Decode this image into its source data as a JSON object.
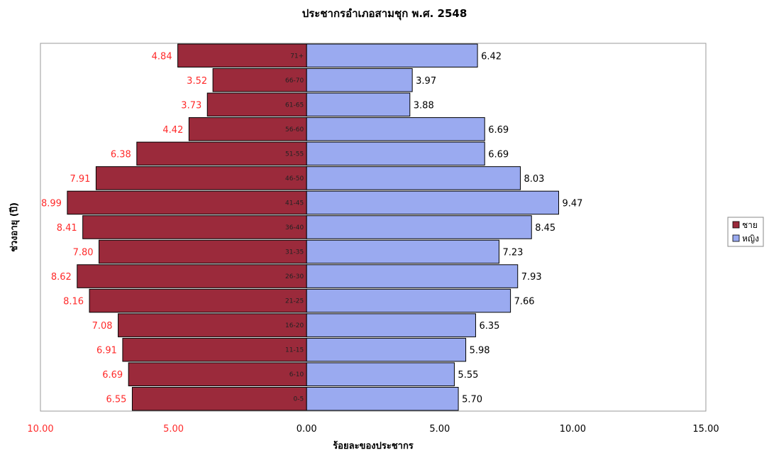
{
  "chart_data": {
    "type": "bar",
    "orientation": "horizontal-population-pyramid",
    "title": "ประชากรอำเภอสามชุก พ.ศ. 2548",
    "xlabel": "ร้อยละของประชากร",
    "ylabel": "ช่วงอายุ (ปี)",
    "xlim": [
      -10,
      15
    ],
    "x_ticks": [
      {
        "value": -10,
        "label": "10.00"
      },
      {
        "value": -5,
        "label": "5.00"
      },
      {
        "value": 0,
        "label": "0.00"
      },
      {
        "value": 5,
        "label": "5.00"
      },
      {
        "value": 10,
        "label": "10.00"
      },
      {
        "value": 15,
        "label": "15.00"
      }
    ],
    "categories": [
      "71+",
      "66-70",
      "61-65",
      "56-60",
      "51-55",
      "46-50",
      "41-45",
      "36-40",
      "31-35",
      "26-30",
      "21-25",
      "16-20",
      "11-15",
      "6-10",
      "0-5"
    ],
    "series": [
      {
        "name": "ชาย",
        "side": "left",
        "color": "#9b2a3b",
        "label_color": "#ff2a2a",
        "values": [
          4.84,
          3.52,
          3.73,
          4.42,
          6.38,
          7.91,
          8.99,
          8.41,
          7.8,
          8.62,
          8.16,
          7.08,
          6.91,
          6.69,
          6.55
        ],
        "labels": [
          "4.84",
          "3.52",
          "3.73",
          "4.42",
          "6.38",
          "7.91",
          "8.99",
          "8.41",
          "7.80",
          "8.62",
          "8.16",
          "7.08",
          "6.91",
          "6.69",
          "6.55"
        ]
      },
      {
        "name": "หญิง",
        "side": "right",
        "color": "#9aaaf0",
        "label_color": "#000000",
        "values": [
          6.42,
          3.97,
          3.88,
          6.69,
          6.69,
          8.03,
          9.47,
          8.45,
          7.23,
          7.93,
          7.66,
          6.35,
          5.98,
          5.55,
          5.7
        ],
        "labels": [
          "6.42",
          "3.97",
          "3.88",
          "6.69",
          "6.69",
          "8.03",
          "9.47",
          "8.45",
          "7.23",
          "7.93",
          "7.66",
          "6.35",
          "5.98",
          "5.55",
          "5.70"
        ]
      }
    ],
    "grid": false,
    "legend": "right"
  }
}
